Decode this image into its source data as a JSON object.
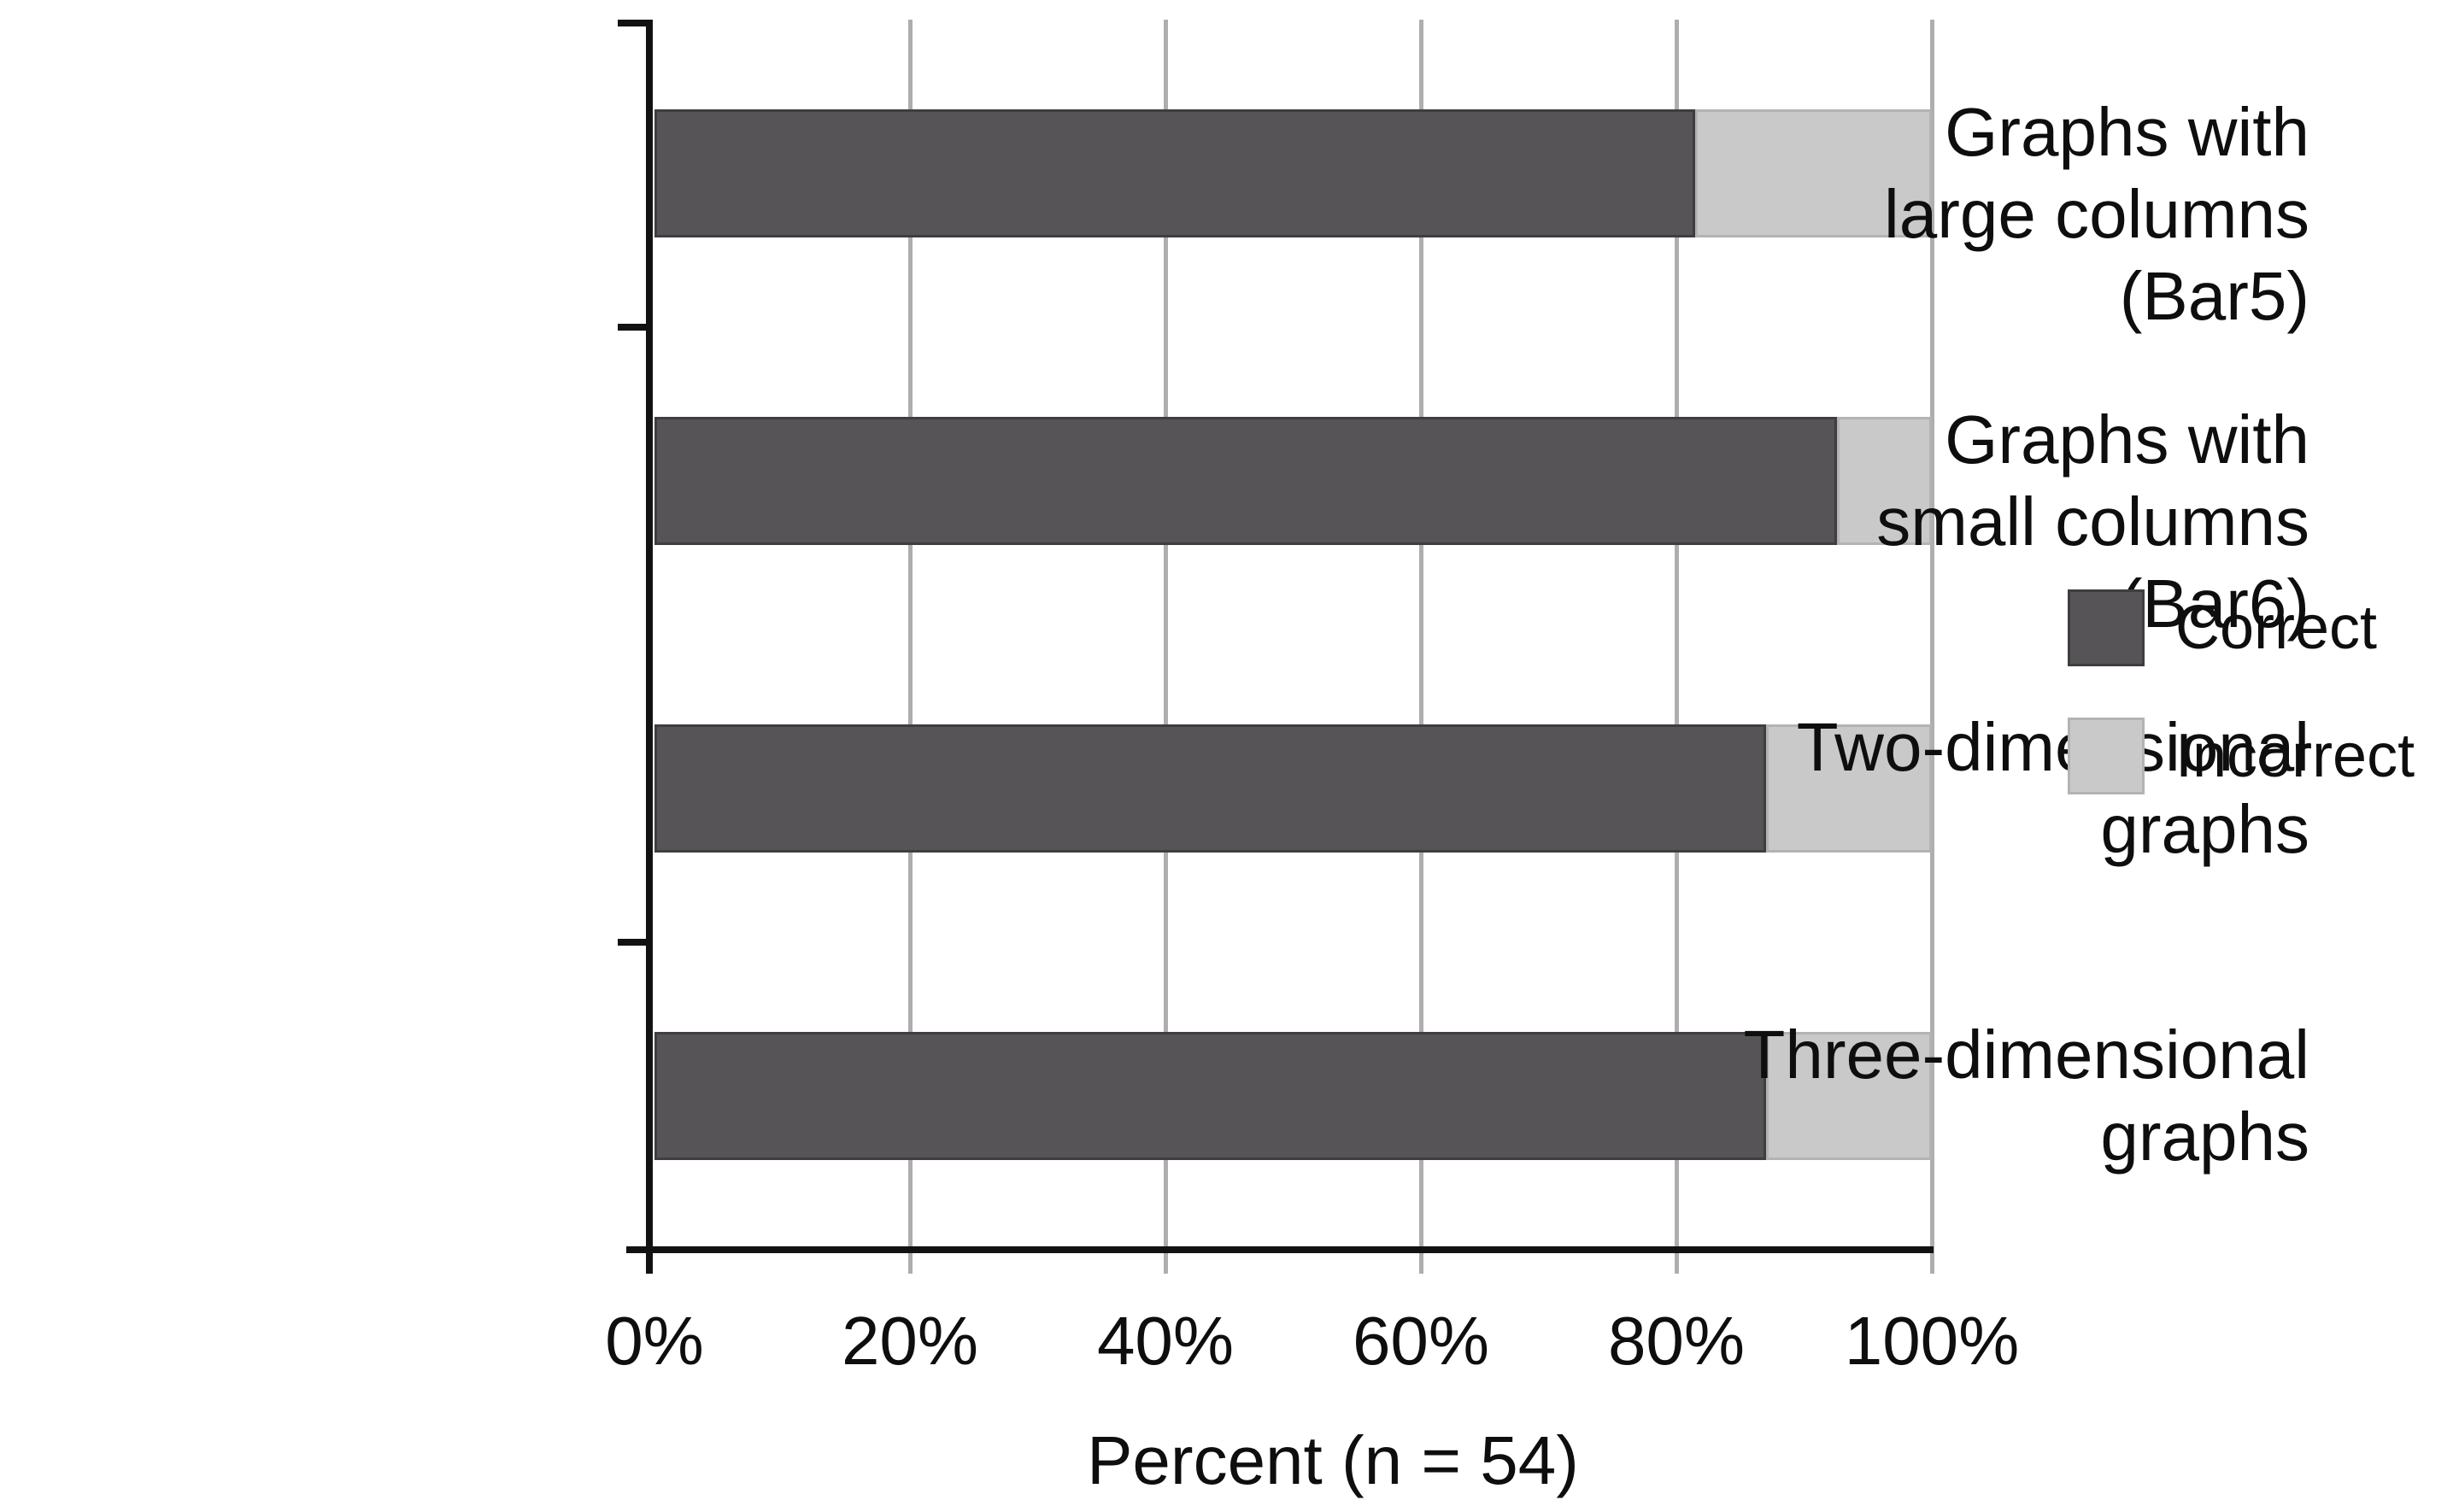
{
  "chart_data": {
    "type": "bar",
    "orientation": "horizontal",
    "stacked": true,
    "title": "",
    "categories": [
      [
        "Graphs with",
        "large columns",
        "(Bar5)"
      ],
      [
        "Graphs with",
        "small columns",
        "(Bar6)"
      ],
      [
        "Two-dimensional",
        "graphs"
      ],
      [
        "Three-dimensional",
        "graphs"
      ]
    ],
    "series": [
      {
        "name": "Correct",
        "color": "#565456",
        "border_color": "#3f3d3f",
        "values": [
          81.5,
          92.6,
          87.0,
          87.0
        ]
      },
      {
        "name": "Incorrect",
        "color": "#cac9ca",
        "border_color": "#b4b3b4",
        "values": [
          18.5,
          7.4,
          13.0,
          13.0
        ]
      }
    ],
    "x_axis": {
      "title": "Percent (n = 54)",
      "range": [
        0,
        100
      ],
      "ticks": [
        {
          "value": 0,
          "label": "0%"
        },
        {
          "value": 20,
          "label": "20%"
        },
        {
          "value": 40,
          "label": "40%"
        },
        {
          "value": 60,
          "label": "60%"
        },
        {
          "value": 80,
          "label": "80%"
        },
        {
          "value": 100,
          "label": "100%"
        }
      ]
    },
    "legend": {
      "position": "right",
      "entries": [
        {
          "label": "Correct"
        },
        {
          "label": "Incorrect"
        }
      ]
    },
    "grid": {
      "vertical_gridlines": true,
      "color": "#aeaeae"
    },
    "unit": "%"
  }
}
